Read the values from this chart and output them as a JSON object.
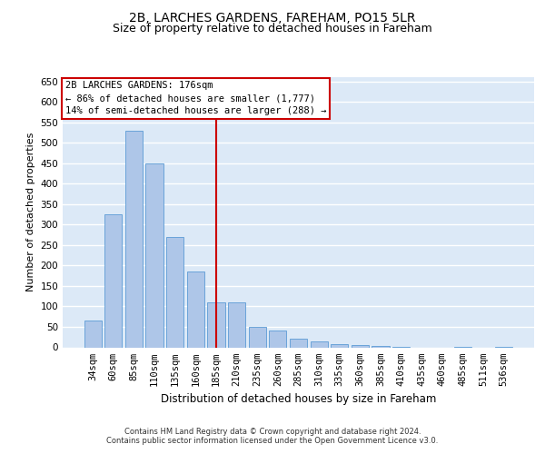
{
  "title1": "2B, LARCHES GARDENS, FAREHAM, PO15 5LR",
  "title2": "Size of property relative to detached houses in Fareham",
  "xlabel": "Distribution of detached houses by size in Fareham",
  "ylabel": "Number of detached properties",
  "categories": [
    "34sqm",
    "60sqm",
    "85sqm",
    "110sqm",
    "135sqm",
    "160sqm",
    "185sqm",
    "210sqm",
    "235sqm",
    "260sqm",
    "285sqm",
    "310sqm",
    "335sqm",
    "360sqm",
    "385sqm",
    "410sqm",
    "435sqm",
    "460sqm",
    "485sqm",
    "511sqm",
    "536sqm"
  ],
  "values": [
    65,
    325,
    530,
    450,
    270,
    185,
    110,
    110,
    50,
    40,
    20,
    15,
    8,
    5,
    3,
    1,
    0,
    0,
    1,
    0,
    1
  ],
  "bar_color": "#aec6e8",
  "bar_edge_color": "#5b9bd5",
  "bg_color": "#dce9f7",
  "grid_color": "#ffffff",
  "annotation_box_text": "2B LARCHES GARDENS: 176sqm\n← 86% of detached houses are smaller (1,777)\n14% of semi-detached houses are larger (288) →",
  "annotation_box_color": "#ffffff",
  "annotation_box_edge_color": "#cc0000",
  "red_line_color": "#cc0000",
  "footer_text": "Contains HM Land Registry data © Crown copyright and database right 2024.\nContains public sector information licensed under the Open Government Licence v3.0.",
  "ylim": [
    0,
    660
  ],
  "yticks": [
    0,
    50,
    100,
    150,
    200,
    250,
    300,
    350,
    400,
    450,
    500,
    550,
    600,
    650
  ],
  "title1_fontsize": 10,
  "title2_fontsize": 9,
  "xlabel_fontsize": 8.5,
  "ylabel_fontsize": 8,
  "tick_fontsize": 7.5,
  "footer_fontsize": 6,
  "red_line_idx": 6
}
